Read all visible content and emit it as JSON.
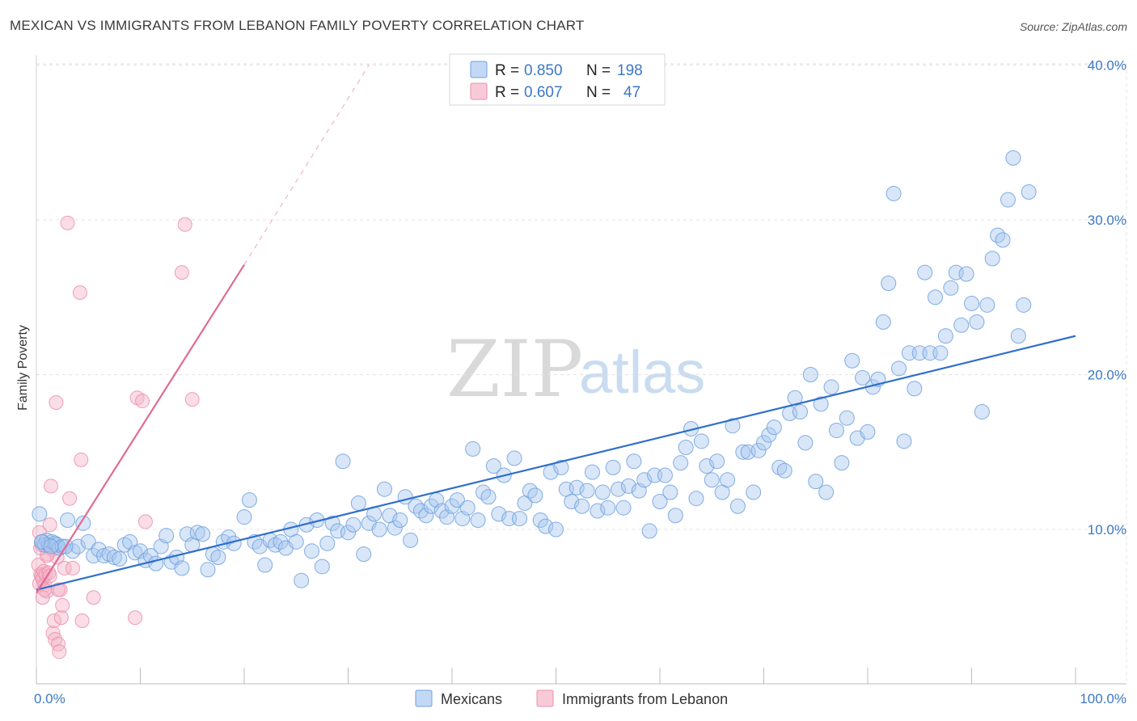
{
  "title": "MEXICAN VS IMMIGRANTS FROM LEBANON FAMILY POVERTY CORRELATION CHART",
  "source": "Source: ZipAtlas.com",
  "watermark": {
    "zip": "ZIP",
    "atlas": "atlas"
  },
  "legend": [
    {
      "r_label": "R = ",
      "r_value": "0.850",
      "n_label": "N = ",
      "n_value": "198"
    },
    {
      "r_label": "R = ",
      "r_value": "0.607",
      "n_label": "N = ",
      "n_value": "47"
    }
  ],
  "bottom_legend": [
    "Mexicans",
    "Immigrants from Lebanon"
  ],
  "colors": {
    "blue_fill": "#a9c8f0",
    "blue_stroke": "#6fa0de",
    "blue_line": "#2f6fcb",
    "pink_fill": "#f5b3c8",
    "pink_stroke": "#ec8fad",
    "pink_line": "#e06b94",
    "grid": "#e3e3e3",
    "axis_text": "#3b78c4"
  },
  "chart_data": {
    "type": "scatter",
    "title": "MEXICAN VS IMMIGRANTS FROM LEBANON FAMILY POVERTY CORRELATION CHART",
    "xlabel": "",
    "ylabel": "Family Poverty",
    "xlim": [
      0,
      100
    ],
    "ylim": [
      0,
      40
    ],
    "x_tick_labels": [
      "0.0%",
      "100.0%"
    ],
    "y_tick_labels": [
      "10.0%",
      "20.0%",
      "30.0%",
      "40.0%"
    ],
    "y_ticks": [
      10,
      20,
      30,
      40
    ],
    "series": [
      {
        "name": "Mexicans",
        "R": 0.85,
        "N": 198,
        "trend": {
          "x": [
            0,
            100
          ],
          "y": [
            6.1,
            22.5
          ],
          "style": "solid"
        },
        "points": [
          [
            0.3,
            11.0
          ],
          [
            0.6,
            9.2
          ],
          [
            0.8,
            9.0
          ],
          [
            1.0,
            9.3
          ],
          [
            1.2,
            9.0
          ],
          [
            1.5,
            9.2
          ],
          [
            1.8,
            9.1
          ],
          [
            2.0,
            9.0
          ],
          [
            2.2,
            8.8
          ],
          [
            2.5,
            8.9
          ],
          [
            3.0,
            10.6
          ],
          [
            3.5,
            8.6
          ],
          [
            4.0,
            8.9
          ],
          [
            4.5,
            10.4
          ],
          [
            5.0,
            9.2
          ],
          [
            5.5,
            8.3
          ],
          [
            6.0,
            8.7
          ],
          [
            6.5,
            8.3
          ],
          [
            7.0,
            8.4
          ],
          [
            7.5,
            8.2
          ],
          [
            8.0,
            8.1
          ],
          [
            8.5,
            9.0
          ],
          [
            9.0,
            9.2
          ],
          [
            9.5,
            8.5
          ],
          [
            10.0,
            8.6
          ],
          [
            10.5,
            8.0
          ],
          [
            11.0,
            8.3
          ],
          [
            11.5,
            7.8
          ],
          [
            12.0,
            8.9
          ],
          [
            12.5,
            9.6
          ],
          [
            13.0,
            7.9
          ],
          [
            13.5,
            8.2
          ],
          [
            14.0,
            7.5
          ],
          [
            14.5,
            9.7
          ],
          [
            15.0,
            9.0
          ],
          [
            15.5,
            9.8
          ],
          [
            16.0,
            9.7
          ],
          [
            16.5,
            7.4
          ],
          [
            17.0,
            8.4
          ],
          [
            17.5,
            8.2
          ],
          [
            18.0,
            9.2
          ],
          [
            18.5,
            9.5
          ],
          [
            19.0,
            9.1
          ],
          [
            20.0,
            10.8
          ],
          [
            20.5,
            11.9
          ],
          [
            21.0,
            9.2
          ],
          [
            21.5,
            8.9
          ],
          [
            22.0,
            7.7
          ],
          [
            22.5,
            9.3
          ],
          [
            23.0,
            9.0
          ],
          [
            23.5,
            9.2
          ],
          [
            24.0,
            8.8
          ],
          [
            24.5,
            10.0
          ],
          [
            25.0,
            9.2
          ],
          [
            25.5,
            6.7
          ],
          [
            26.0,
            10.3
          ],
          [
            26.5,
            8.6
          ],
          [
            27.0,
            10.6
          ],
          [
            27.5,
            7.6
          ],
          [
            28.0,
            9.1
          ],
          [
            28.5,
            10.4
          ],
          [
            29.0,
            9.9
          ],
          [
            29.5,
            14.4
          ],
          [
            30.0,
            9.8
          ],
          [
            30.5,
            10.3
          ],
          [
            31.0,
            11.7
          ],
          [
            31.5,
            8.4
          ],
          [
            32.0,
            10.4
          ],
          [
            32.5,
            11.0
          ],
          [
            33.0,
            10.0
          ],
          [
            33.5,
            12.6
          ],
          [
            34.0,
            10.9
          ],
          [
            34.5,
            10.1
          ],
          [
            35.0,
            10.6
          ],
          [
            35.5,
            12.1
          ],
          [
            36.0,
            9.3
          ],
          [
            36.5,
            11.5
          ],
          [
            37.0,
            11.2
          ],
          [
            37.5,
            10.9
          ],
          [
            38.0,
            11.5
          ],
          [
            38.5,
            11.9
          ],
          [
            39.0,
            11.2
          ],
          [
            39.5,
            10.8
          ],
          [
            40.0,
            11.5
          ],
          [
            40.5,
            11.9
          ],
          [
            41.0,
            10.7
          ],
          [
            41.5,
            11.4
          ],
          [
            42.0,
            15.2
          ],
          [
            42.5,
            10.6
          ],
          [
            43.0,
            12.4
          ],
          [
            43.5,
            12.1
          ],
          [
            44.0,
            14.1
          ],
          [
            44.5,
            11.0
          ],
          [
            45.0,
            13.5
          ],
          [
            45.5,
            10.7
          ],
          [
            46.0,
            14.6
          ],
          [
            46.5,
            10.7
          ],
          [
            47.0,
            11.7
          ],
          [
            47.5,
            12.5
          ],
          [
            48.0,
            12.2
          ],
          [
            48.5,
            10.6
          ],
          [
            49.0,
            10.2
          ],
          [
            49.5,
            13.7
          ],
          [
            50.0,
            10.0
          ],
          [
            50.5,
            14.0
          ],
          [
            51.0,
            12.6
          ],
          [
            51.5,
            11.8
          ],
          [
            52.0,
            12.7
          ],
          [
            52.5,
            11.5
          ],
          [
            53.0,
            12.5
          ],
          [
            53.5,
            13.7
          ],
          [
            54.0,
            11.2
          ],
          [
            54.5,
            12.4
          ],
          [
            55.0,
            11.4
          ],
          [
            55.5,
            14.0
          ],
          [
            56.0,
            12.6
          ],
          [
            56.5,
            11.4
          ],
          [
            57.0,
            12.8
          ],
          [
            57.5,
            14.4
          ],
          [
            58.0,
            12.5
          ],
          [
            58.5,
            13.2
          ],
          [
            59.0,
            9.9
          ],
          [
            59.5,
            13.5
          ],
          [
            60.0,
            11.8
          ],
          [
            60.5,
            13.5
          ],
          [
            61.0,
            12.4
          ],
          [
            61.5,
            10.9
          ],
          [
            62.0,
            14.3
          ],
          [
            62.5,
            15.3
          ],
          [
            63.0,
            16.5
          ],
          [
            63.5,
            12.0
          ],
          [
            64.0,
            15.7
          ],
          [
            64.5,
            14.1
          ],
          [
            65.0,
            13.2
          ],
          [
            65.5,
            14.4
          ],
          [
            66.0,
            12.4
          ],
          [
            66.5,
            13.2
          ],
          [
            67.0,
            16.7
          ],
          [
            67.5,
            11.5
          ],
          [
            68.0,
            15.0
          ],
          [
            68.5,
            15.0
          ],
          [
            69.0,
            12.4
          ],
          [
            69.5,
            15.1
          ],
          [
            70.0,
            15.6
          ],
          [
            70.5,
            16.1
          ],
          [
            71.0,
            16.6
          ],
          [
            71.5,
            14.0
          ],
          [
            72.0,
            13.8
          ],
          [
            72.5,
            17.5
          ],
          [
            73.0,
            18.5
          ],
          [
            73.5,
            17.6
          ],
          [
            74.0,
            15.6
          ],
          [
            74.5,
            20.0
          ],
          [
            75.0,
            13.1
          ],
          [
            75.5,
            18.1
          ],
          [
            76.0,
            12.4
          ],
          [
            76.5,
            19.2
          ],
          [
            77.0,
            16.4
          ],
          [
            77.5,
            14.3
          ],
          [
            78.0,
            17.2
          ],
          [
            78.5,
            20.9
          ],
          [
            79.0,
            15.9
          ],
          [
            79.5,
            19.8
          ],
          [
            80.0,
            16.3
          ],
          [
            80.5,
            19.2
          ],
          [
            81.0,
            19.7
          ],
          [
            81.5,
            23.4
          ],
          [
            82.0,
            25.9
          ],
          [
            82.5,
            31.7
          ],
          [
            83.0,
            20.4
          ],
          [
            83.5,
            15.7
          ],
          [
            84.0,
            21.4
          ],
          [
            84.5,
            19.1
          ],
          [
            85.0,
            21.4
          ],
          [
            85.5,
            26.6
          ],
          [
            86.0,
            21.4
          ],
          [
            86.5,
            25.0
          ],
          [
            87.0,
            21.4
          ],
          [
            87.5,
            22.5
          ],
          [
            88.0,
            25.6
          ],
          [
            88.5,
            26.6
          ],
          [
            89.0,
            23.2
          ],
          [
            89.5,
            26.5
          ],
          [
            90.0,
            24.6
          ],
          [
            90.5,
            23.4
          ],
          [
            91.0,
            17.6
          ],
          [
            91.5,
            24.5
          ],
          [
            92.0,
            27.5
          ],
          [
            92.5,
            29.0
          ],
          [
            93.0,
            28.7
          ],
          [
            93.5,
            31.3
          ],
          [
            94.0,
            34.0
          ],
          [
            94.5,
            22.5
          ],
          [
            95.0,
            24.5
          ],
          [
            95.5,
            31.8
          ],
          [
            0.5,
            9.2
          ],
          [
            1.4,
            8.9
          ],
          [
            2.8,
            8.9
          ]
        ]
      },
      {
        "name": "Immigrants from Lebanon",
        "R": 0.607,
        "N": 47,
        "trend": {
          "x": [
            0,
            20
          ],
          "y": [
            5.9,
            27.1
          ],
          "x_dashed": [
            20,
            32
          ],
          "y_dashed": [
            27.1,
            40.0
          ]
        },
        "points": [
          [
            0.2,
            7.7
          ],
          [
            0.3,
            6.5
          ],
          [
            0.4,
            7.1
          ],
          [
            0.5,
            7.0
          ],
          [
            0.6,
            6.8
          ],
          [
            0.7,
            7.3
          ],
          [
            0.8,
            6.4
          ],
          [
            0.9,
            7.1
          ],
          [
            1.0,
            6.0
          ],
          [
            1.1,
            8.4
          ],
          [
            1.2,
            7.2
          ],
          [
            1.3,
            10.3
          ],
          [
            1.4,
            12.8
          ],
          [
            1.5,
            8.7
          ],
          [
            1.6,
            3.3
          ],
          [
            1.7,
            4.1
          ],
          [
            1.8,
            2.9
          ],
          [
            1.9,
            18.2
          ],
          [
            2.0,
            8.2
          ],
          [
            2.1,
            2.6
          ],
          [
            2.2,
            2.1
          ],
          [
            2.3,
            6.1
          ],
          [
            2.4,
            4.3
          ],
          [
            2.5,
            5.1
          ],
          [
            2.7,
            7.5
          ],
          [
            3.0,
            29.8
          ],
          [
            3.2,
            12.0
          ],
          [
            3.5,
            7.5
          ],
          [
            4.2,
            25.3
          ],
          [
            4.3,
            14.5
          ],
          [
            4.4,
            4.1
          ],
          [
            5.5,
            5.6
          ],
          [
            9.5,
            4.3
          ],
          [
            9.7,
            18.5
          ],
          [
            10.2,
            18.3
          ],
          [
            10.5,
            10.5
          ],
          [
            14.0,
            26.6
          ],
          [
            14.3,
            29.7
          ],
          [
            15.0,
            18.4
          ],
          [
            0.5,
            9.0
          ],
          [
            0.6,
            5.6
          ],
          [
            1.0,
            8.3
          ],
          [
            1.3,
            7.0
          ],
          [
            2.1,
            6.1
          ],
          [
            0.4,
            8.8
          ],
          [
            0.8,
            6.1
          ],
          [
            0.3,
            9.8
          ]
        ]
      }
    ]
  }
}
